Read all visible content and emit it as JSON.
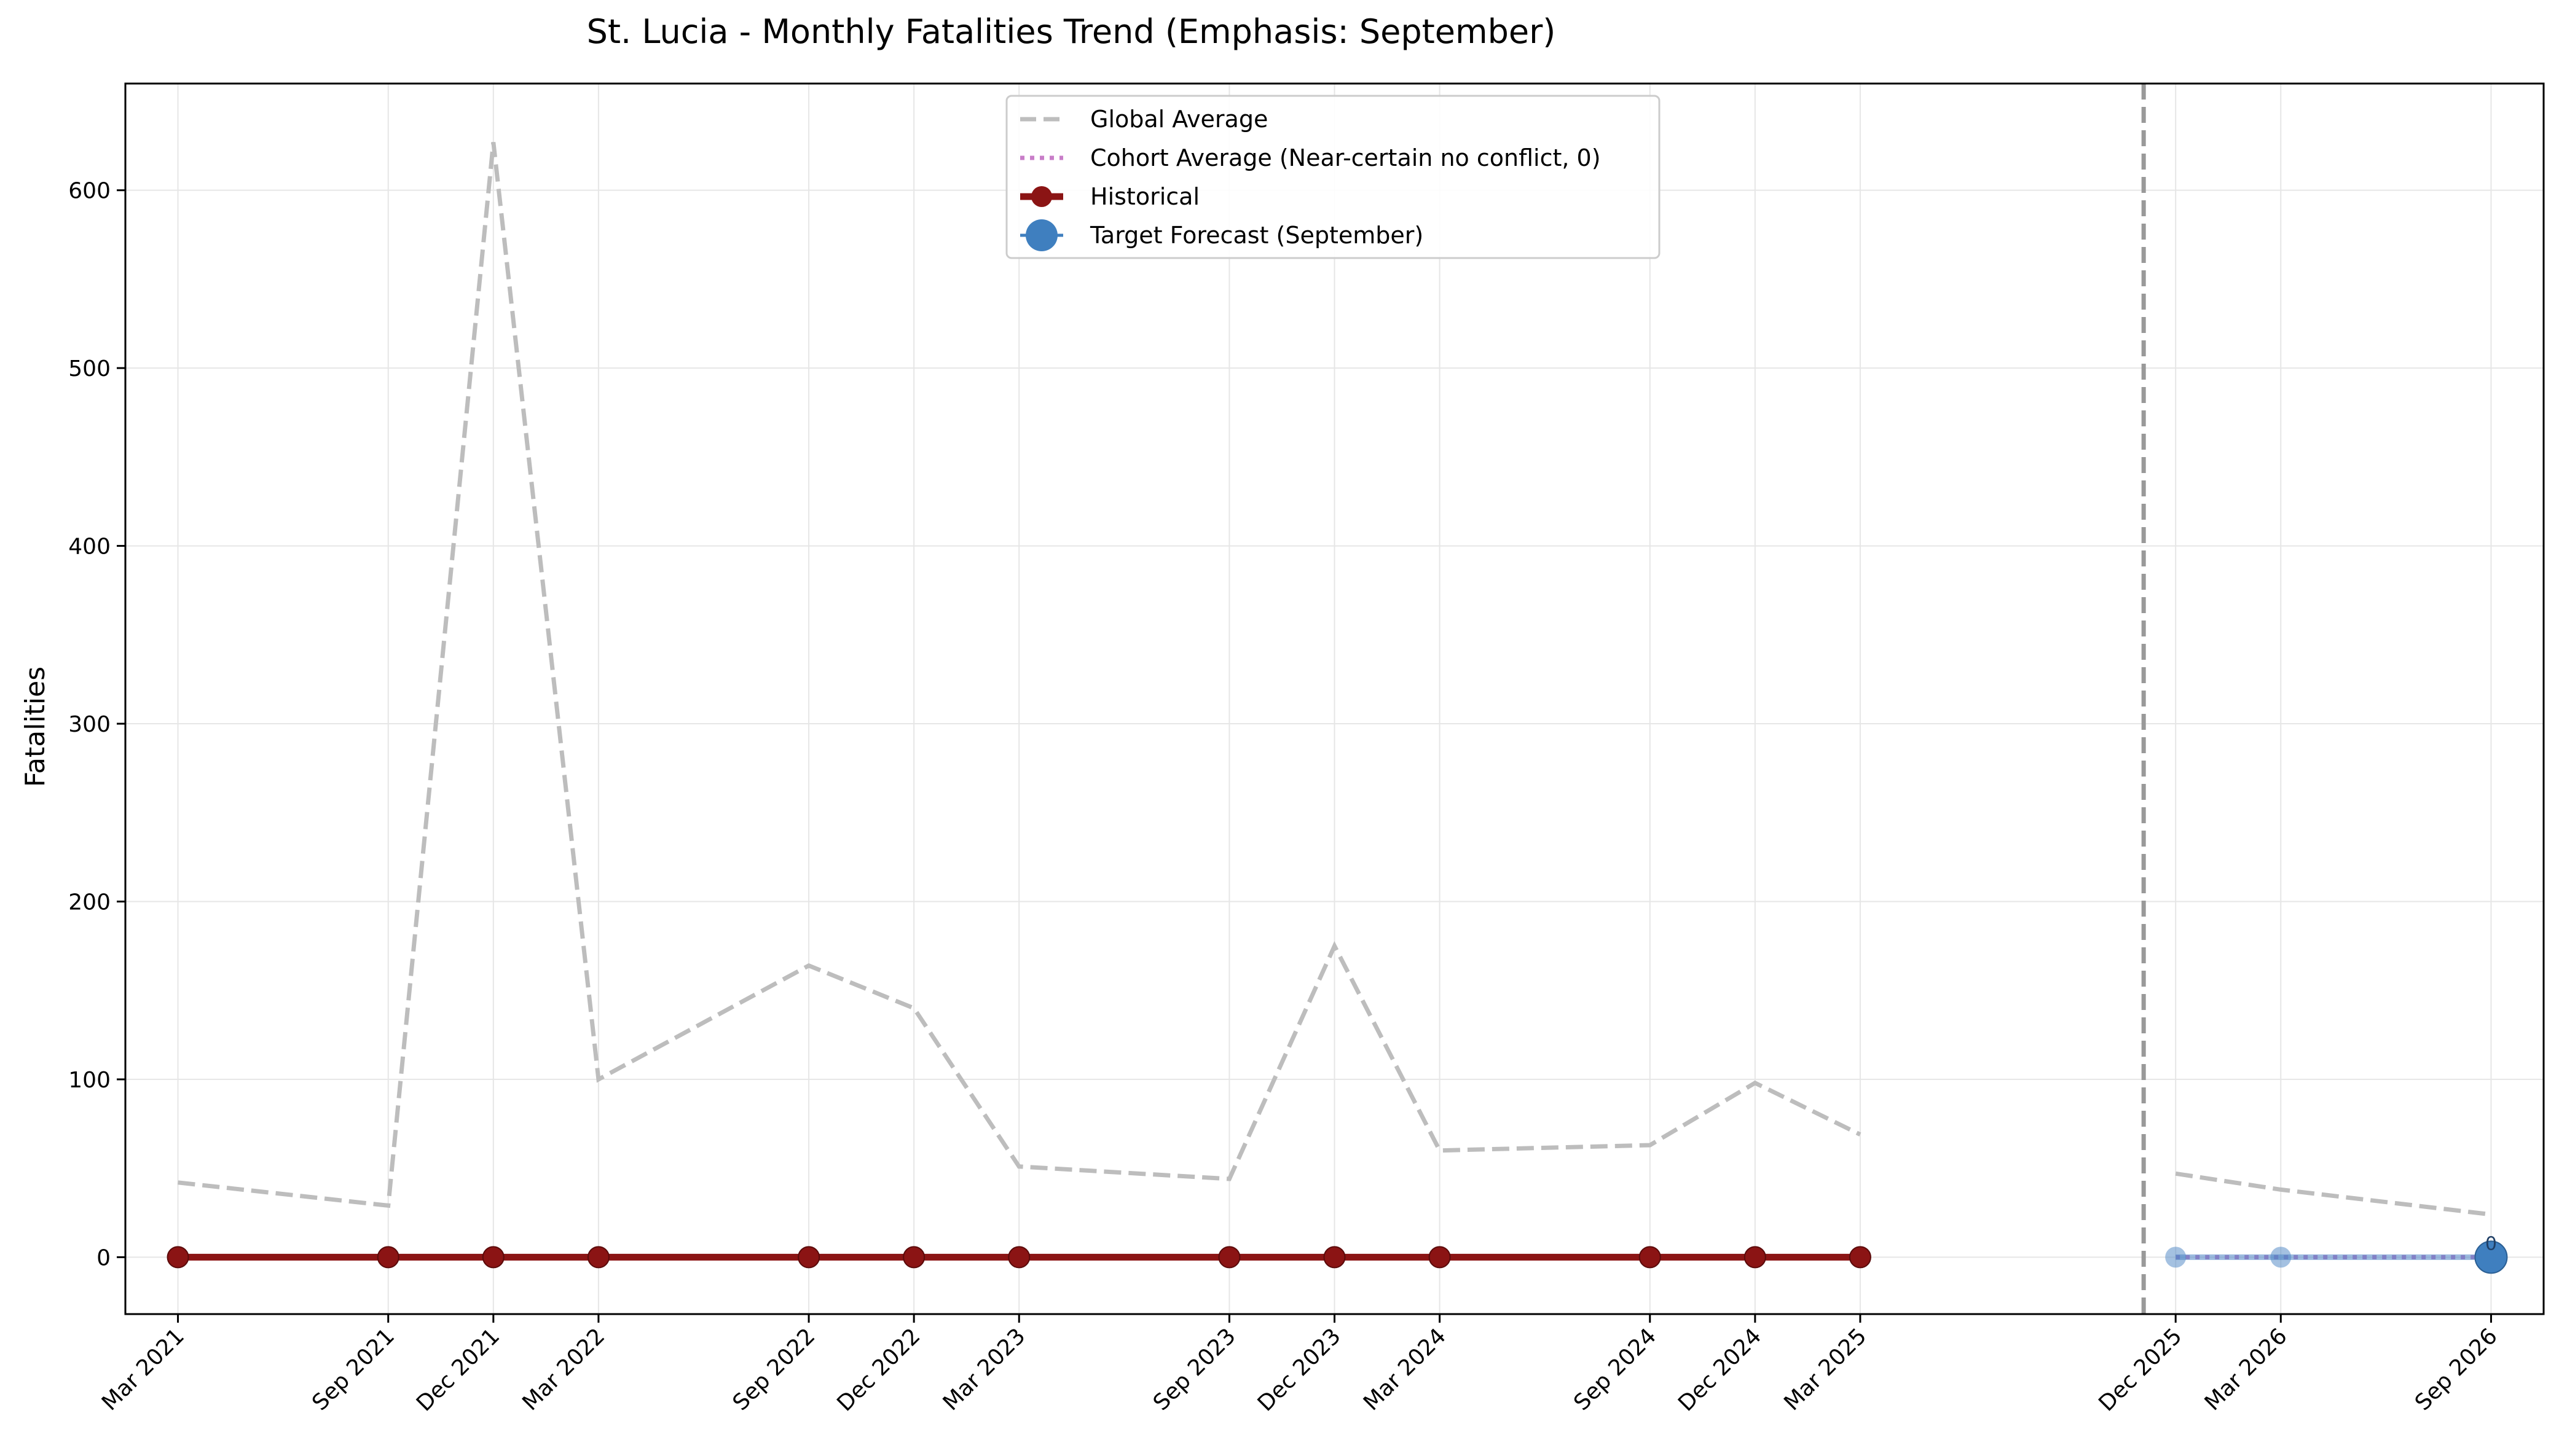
{
  "chart_data": {
    "type": "line",
    "title": "St. Lucia - Monthly Fatalities Trend (Emphasis: September)",
    "xlabel": "",
    "ylabel": "Fatalities",
    "ylim": [
      -32,
      660
    ],
    "yticks": [
      0,
      100,
      200,
      300,
      400,
      500,
      600
    ],
    "grid": true,
    "legend_position": "top-center",
    "forecast_divider_x": "Nov 2025",
    "x_tick_labels": [
      "Mar 2021",
      "Sep 2021",
      "Dec 2021",
      "Mar 2022",
      "Sep 2022",
      "Dec 2022",
      "Mar 2023",
      "Sep 2023",
      "Dec 2023",
      "Mar 2024",
      "Sep 2024",
      "Dec 2024",
      "Mar 2025",
      "Dec 2025",
      "Mar 2026",
      "Sep 2026"
    ],
    "series": [
      {
        "name": "Global Average",
        "style": "dashed",
        "color": "#bdbdbd",
        "segments": [
          {
            "x": [
              "Mar 2021",
              "Sep 2021",
              "Dec 2021",
              "Mar 2022",
              "Sep 2022",
              "Dec 2022",
              "Mar 2023",
              "Sep 2023",
              "Dec 2023",
              "Mar 2024",
              "Sep 2024",
              "Dec 2024",
              "Mar 2025"
            ],
            "y": [
              42,
              29,
              627,
              100,
              164,
              140,
              51,
              44,
              175,
              60,
              63,
              98,
              69
            ]
          },
          {
            "x": [
              "Dec 2025",
              "Mar 2026",
              "Sep 2026"
            ],
            "y": [
              47,
              38,
              24
            ]
          }
        ]
      },
      {
        "name": "Cohort Average (Near-certain no conflict, 0)",
        "style": "dotted",
        "color": "#c87dc8",
        "segments": [
          {
            "x": [
              "Mar 2021",
              "Sep 2021",
              "Dec 2021",
              "Mar 2022",
              "Sep 2022",
              "Dec 2022",
              "Mar 2023",
              "Sep 2023",
              "Dec 2023",
              "Mar 2024",
              "Sep 2024",
              "Dec 2024",
              "Mar 2025"
            ],
            "y": [
              0,
              0,
              0,
              0,
              0,
              0,
              0,
              0,
              0,
              0,
              0,
              0,
              0
            ]
          },
          {
            "x": [
              "Dec 2025",
              "Mar 2026",
              "Sep 2026"
            ],
            "y": [
              0,
              0,
              0
            ]
          }
        ]
      },
      {
        "name": "Historical",
        "style": "solid-markers",
        "color": "#8b1414",
        "x": [
          "Mar 2021",
          "Sep 2021",
          "Dec 2021",
          "Mar 2022",
          "Sep 2022",
          "Dec 2022",
          "Mar 2023",
          "Sep 2023",
          "Dec 2023",
          "Mar 2024",
          "Sep 2024",
          "Dec 2024",
          "Mar 2025"
        ],
        "y": [
          0,
          0,
          0,
          0,
          0,
          0,
          0,
          0,
          0,
          0,
          0,
          0,
          0
        ]
      },
      {
        "name": "Forecast",
        "style": "faint-markers",
        "color": "#4a84c4",
        "x": [
          "Dec 2025",
          "Mar 2026",
          "Sep 2026"
        ],
        "y": [
          0,
          0,
          0
        ]
      },
      {
        "name": "Target Forecast (September)",
        "style": "large-marker",
        "color": "#3f7fbf",
        "x": [
          "Sep 2026"
        ],
        "y": [
          0
        ],
        "annotation": "0"
      }
    ]
  }
}
